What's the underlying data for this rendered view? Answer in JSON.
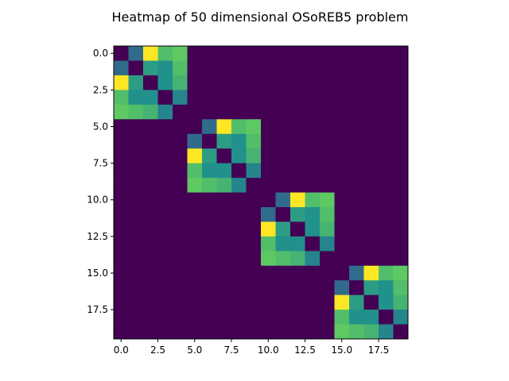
{
  "chart_data": {
    "type": "heatmap",
    "title": "Heatmap of 50 dimensional OSoREB5 problem",
    "xlabel": "",
    "ylabel": "",
    "rows": 20,
    "cols": 20,
    "extent": [
      -0.5,
      19.5
    ],
    "xticks": [
      0.0,
      2.5,
      5.0,
      7.5,
      10.0,
      12.5,
      15.0,
      17.5
    ],
    "xtick_labels": [
      "0.0",
      "2.5",
      "5.0",
      "7.5",
      "10.0",
      "12.5",
      "15.0",
      "17.5"
    ],
    "yticks": [
      0.0,
      2.5,
      5.0,
      7.5,
      10.0,
      12.5,
      15.0,
      17.5
    ],
    "ytick_labels": [
      "0.0",
      "2.5",
      "5.0",
      "7.5",
      "10.0",
      "12.5",
      "15.0",
      "17.5"
    ],
    "colormap": "viridis",
    "value_range": [
      0,
      1
    ],
    "grid": false,
    "block_size": 5,
    "block_starts": [
      0,
      5,
      10,
      15
    ],
    "block_pattern": [
      [
        0.0,
        0.35,
        1.0,
        0.7,
        0.75
      ],
      [
        0.35,
        0.0,
        0.55,
        0.5,
        0.7
      ],
      [
        1.0,
        0.55,
        0.0,
        0.5,
        0.65
      ],
      [
        0.7,
        0.5,
        0.5,
        0.0,
        0.45
      ],
      [
        0.75,
        0.7,
        0.65,
        0.45,
        0.0
      ]
    ]
  }
}
